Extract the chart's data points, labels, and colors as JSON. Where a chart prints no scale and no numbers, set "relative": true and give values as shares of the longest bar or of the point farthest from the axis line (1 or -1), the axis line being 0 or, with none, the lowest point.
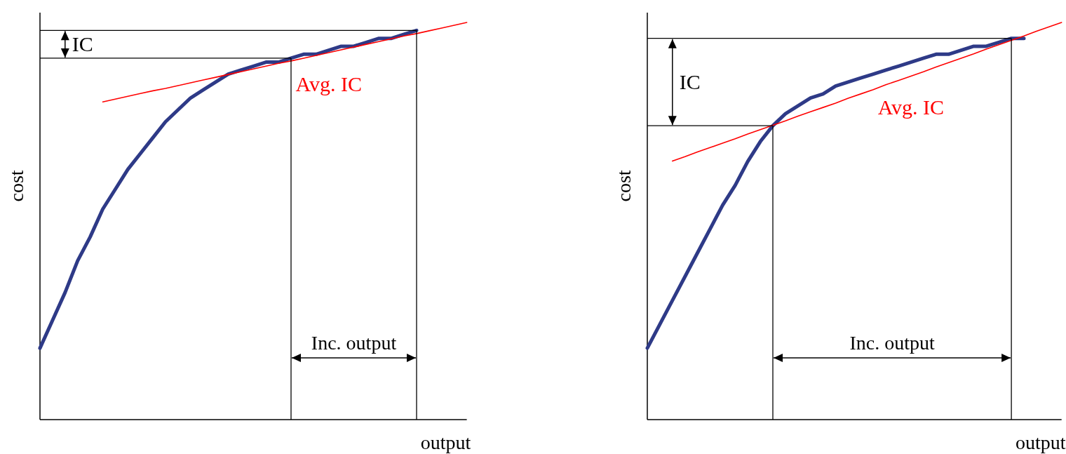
{
  "chart_data": [
    {
      "type": "line",
      "relative": true,
      "xlabel": "output",
      "ylabel": "cost",
      "categories": [
        null,
        null,
        null,
        null,
        null,
        null,
        null,
        null,
        null,
        null,
        null,
        null,
        null,
        null,
        null,
        null,
        null,
        null,
        null,
        null,
        null,
        null,
        null,
        null,
        null,
        null,
        null,
        null,
        null,
        null,
        null,
        null,
        null,
        null,
        null
      ],
      "series": [
        {
          "color": "#2e3a87",
          "values": [
            0.18,
            0.25,
            0.32,
            0.4,
            0.46,
            0.53,
            0.58,
            0.63,
            0.67,
            0.71,
            0.75,
            0.78,
            0.81,
            0.83,
            0.85,
            0.87,
            0.88,
            0.89,
            0.9,
            0.9,
            0.91,
            0.92,
            0.92,
            0.93,
            0.94,
            0.94,
            0.95,
            0.96,
            0.96,
            0.97,
            0.98,
            null,
            null,
            null,
            null
          ]
        },
        {
          "name": "Avg. IC",
          "color": "#ff0000",
          "values": [
            null,
            null,
            null,
            null,
            null,
            0.8,
            0.807,
            0.814,
            0.821,
            0.828,
            0.834,
            0.841,
            0.848,
            0.855,
            0.862,
            0.869,
            0.876,
            0.883,
            0.89,
            0.897,
            0.903,
            0.91,
            0.917,
            0.924,
            0.931,
            0.938,
            0.945,
            0.952,
            0.959,
            0.966,
            0.972,
            0.979,
            0.986,
            0.993,
            1.0
          ]
        }
      ],
      "ref_lines": [
        {
          "axis": "y",
          "value": 0.98
        },
        {
          "axis": "y",
          "value": 0.91
        }
      ],
      "annotations": [
        "IC",
        "Inc. output"
      ]
    },
    {
      "type": "line",
      "relative": true,
      "xlabel": "output",
      "ylabel": "cost",
      "categories": [
        null,
        null,
        null,
        null,
        null,
        null,
        null,
        null,
        null,
        null,
        null,
        null,
        null,
        null,
        null,
        null,
        null,
        null,
        null,
        null,
        null,
        null,
        null,
        null,
        null,
        null,
        null,
        null,
        null,
        null,
        null,
        null,
        null,
        null
      ],
      "series": [
        {
          "color": "#2e3a87",
          "values": [
            0.18,
            0.24,
            0.3,
            0.36,
            0.42,
            0.48,
            0.54,
            0.59,
            0.65,
            0.7,
            0.74,
            0.77,
            0.79,
            0.81,
            0.82,
            0.84,
            0.85,
            0.86,
            0.87,
            0.88,
            0.89,
            0.9,
            0.91,
            0.92,
            0.92,
            0.93,
            0.94,
            0.94,
            0.95,
            0.96,
            0.96,
            null,
            null,
            null
          ]
        },
        {
          "name": "Avg. IC",
          "color": "#ff0000",
          "values": [
            null,
            null,
            0.651,
            0.662,
            0.674,
            0.685,
            0.696,
            0.707,
            0.719,
            0.73,
            0.741,
            0.752,
            0.764,
            0.775,
            0.786,
            0.797,
            0.809,
            0.82,
            0.831,
            0.843,
            0.854,
            0.865,
            0.876,
            0.888,
            0.899,
            0.91,
            0.921,
            0.933,
            0.944,
            0.955,
            0.966,
            0.978,
            0.989,
            1.0
          ]
        }
      ],
      "ref_lines": [
        {
          "axis": "y",
          "value": 0.96
        },
        {
          "axis": "y",
          "value": 0.74
        }
      ],
      "annotations": [
        "IC",
        "Inc. output"
      ]
    }
  ]
}
